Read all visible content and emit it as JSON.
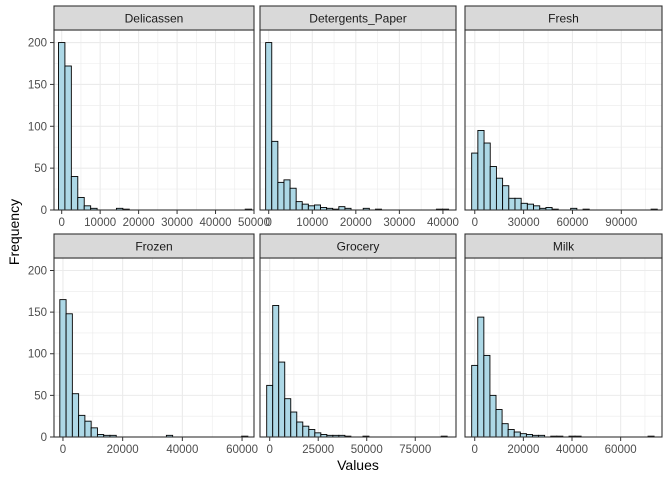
{
  "chart_data": {
    "type": "bar",
    "subtype": "faceted-histogram",
    "xlabel": "Values",
    "ylabel": "Frequency",
    "ylim": [
      0,
      215
    ],
    "y_ticks": [
      0,
      50,
      100,
      150,
      200
    ],
    "grid": true,
    "legend": "none",
    "bins_per_panel": 30,
    "colors": {
      "bar_fill": "#add8e6",
      "bar_stroke": "#000000",
      "strip_fill": "#d9d9d9",
      "grid": "#ebebeb",
      "panel_border": "#333333"
    },
    "panels": [
      {
        "name": "Delicassen",
        "xlim": [
          -2000,
          50000
        ],
        "x_ticks": [
          0,
          10000,
          20000,
          30000,
          40000,
          50000
        ],
        "x_tick_labels": [
          "0",
          "10000",
          "20000",
          "30000",
          "40000",
          "50000"
        ],
        "bin_start": -837,
        "bin_width": 1674,
        "counts": [
          200,
          172,
          40,
          15,
          5,
          2,
          0,
          0,
          0,
          2,
          1,
          0,
          0,
          0,
          0,
          0,
          0,
          0,
          0,
          0,
          0,
          0,
          0,
          0,
          0,
          0,
          0,
          0,
          0,
          1
        ]
      },
      {
        "name": "Detergents_Paper",
        "xlim": [
          -2000,
          43000
        ],
        "x_ticks": [
          0,
          10000,
          20000,
          30000,
          40000
        ],
        "x_tick_labels": [
          "0",
          "10000",
          "20000",
          "30000",
          "40000"
        ],
        "bin_start": -700,
        "bin_width": 1400,
        "counts": [
          200,
          82,
          33,
          36,
          26,
          10,
          7,
          5,
          6,
          3,
          2,
          1,
          4,
          2,
          0,
          0,
          2,
          0,
          1,
          0,
          0,
          0,
          0,
          0,
          0,
          0,
          0,
          0,
          1,
          1
        ]
      },
      {
        "name": "Fresh",
        "xlim": [
          -6000,
          115000
        ],
        "x_ticks": [
          0,
          30000,
          60000,
          90000
        ],
        "x_tick_labels": [
          "0",
          "30000",
          "60000",
          "90000"
        ],
        "bin_start": -1900,
        "bin_width": 3800,
        "counts": [
          68,
          95,
          80,
          52,
          38,
          29,
          14,
          14,
          8,
          7,
          5,
          2,
          3,
          1,
          0,
          0,
          2,
          0,
          1,
          0,
          0,
          0,
          0,
          0,
          0,
          0,
          0,
          0,
          0,
          1
        ]
      },
      {
        "name": "Frozen",
        "xlim": [
          -3000,
          64000
        ],
        "x_ticks": [
          0,
          20000,
          40000,
          60000
        ],
        "x_tick_labels": [
          "0",
          "20000",
          "40000",
          "60000"
        ],
        "bin_start": -1050,
        "bin_width": 2100,
        "counts": [
          165,
          148,
          52,
          26,
          19,
          11,
          3,
          2,
          2,
          0,
          0,
          0,
          0,
          0,
          0,
          0,
          0,
          2,
          0,
          0,
          0,
          0,
          0,
          0,
          0,
          0,
          0,
          0,
          0,
          1
        ]
      },
      {
        "name": "Grocery",
        "xlim": [
          -5000,
          96000
        ],
        "x_ticks": [
          0,
          25000,
          50000,
          75000
        ],
        "x_tick_labels": [
          "0",
          "25000",
          "50000",
          "75000"
        ],
        "bin_start": -1550,
        "bin_width": 3100,
        "counts": [
          62,
          158,
          90,
          46,
          30,
          18,
          13,
          9,
          5,
          3,
          2,
          2,
          2,
          1,
          0,
          0,
          1,
          0,
          0,
          0,
          0,
          0,
          0,
          0,
          0,
          0,
          0,
          0,
          0,
          1
        ]
      },
      {
        "name": "Milk",
        "xlim": [
          -4000,
          77000
        ],
        "x_ticks": [
          0,
          20000,
          40000,
          60000
        ],
        "x_tick_labels": [
          "0",
          "20000",
          "40000",
          "60000"
        ],
        "bin_start": -1250,
        "bin_width": 2500,
        "counts": [
          86,
          144,
          98,
          50,
          33,
          16,
          9,
          6,
          4,
          3,
          2,
          2,
          0,
          1,
          1,
          0,
          1,
          1,
          0,
          0,
          0,
          0,
          0,
          0,
          0,
          0,
          0,
          0,
          0,
          1
        ]
      }
    ]
  }
}
